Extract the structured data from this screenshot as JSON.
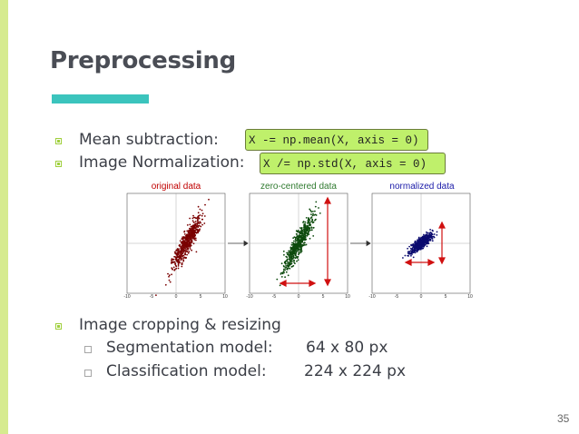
{
  "slide": {
    "title": "Preprocessing",
    "page_number": "35",
    "accent_color": "#3bc4bd",
    "side_bar_color": "#d6eb8f",
    "code_highlight_color": "#bff06b"
  },
  "bullets": [
    {
      "label": "Mean subtraction:",
      "code": "X -= np.mean(X, axis = 0)"
    },
    {
      "label": "Image Normalization:",
      "code": "X /= np.std(X, axis = 0)"
    },
    {
      "label": "Image cropping & resizing"
    }
  ],
  "sub_bullets": [
    {
      "label": "Segmentation model:",
      "value": "64 x 80 px"
    },
    {
      "label": "Classification model:",
      "value": "224 x 224 px"
    }
  ],
  "figure": {
    "panels": [
      {
        "title": "original data",
        "title_color": "#c00000",
        "point_color": "#7a0000"
      },
      {
        "title": "zero-centered data",
        "title_color": "#2f7a2f",
        "point_color": "#0c4a0c"
      },
      {
        "title": "normalized data",
        "title_color": "#1a1aa8",
        "point_color": "#0a0a6e"
      }
    ],
    "ticks": [
      "-10",
      "-5",
      "0",
      "5",
      "10"
    ]
  }
}
